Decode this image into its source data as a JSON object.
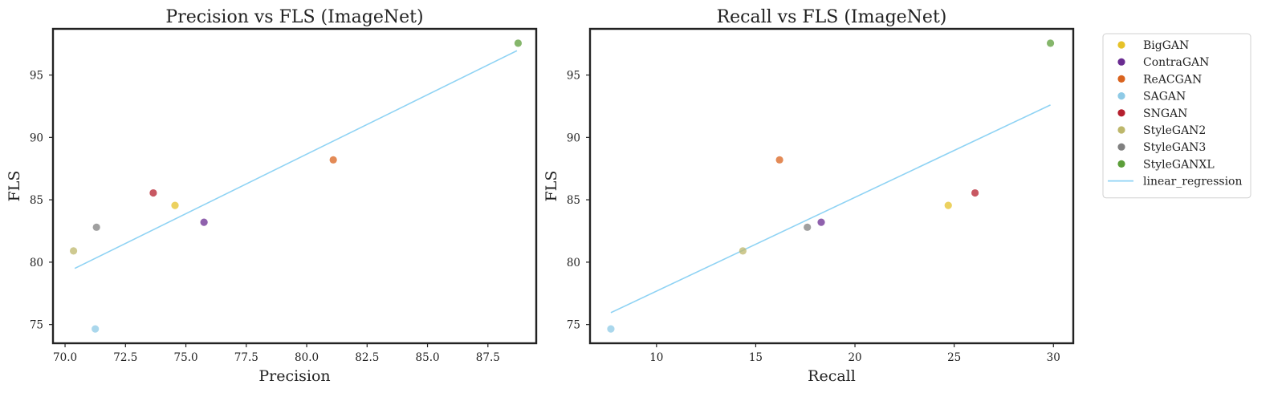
{
  "chart_data": [
    {
      "type": "scatter",
      "title": "Precision vs FLS (ImageNet)",
      "xlabel": "Precision",
      "ylabel": "FLS",
      "xlim": [
        69.5,
        89.5
      ],
      "ylim": [
        73.5,
        98.7
      ],
      "xticks": [
        70.0,
        72.5,
        75.0,
        77.5,
        80.0,
        82.5,
        85.0,
        87.5
      ],
      "xtick_labels": [
        "70.0",
        "72.5",
        "75.0",
        "77.5",
        "80.0",
        "82.5",
        "85.0",
        "87.5"
      ],
      "yticks": [
        75,
        80,
        85,
        90,
        95
      ],
      "ytick_labels": [
        "75",
        "80",
        "85",
        "90",
        "95"
      ],
      "series": [
        {
          "name": "BigGAN",
          "x": [
            74.55
          ],
          "y": [
            84.55
          ]
        },
        {
          "name": "ContraGAN",
          "x": [
            75.75
          ],
          "y": [
            83.2
          ]
        },
        {
          "name": "ReACGAN",
          "x": [
            81.1
          ],
          "y": [
            88.2
          ]
        },
        {
          "name": "SAGAN",
          "x": [
            71.25
          ],
          "y": [
            74.65
          ]
        },
        {
          "name": "SNGAN",
          "x": [
            73.65
          ],
          "y": [
            85.55
          ]
        },
        {
          "name": "StyleGAN2",
          "x": [
            70.35
          ],
          "y": [
            80.9
          ]
        },
        {
          "name": "StyleGAN3",
          "x": [
            71.3
          ],
          "y": [
            82.8
          ]
        },
        {
          "name": "StyleGANXL",
          "x": [
            88.75
          ],
          "y": [
            97.55
          ]
        }
      ],
      "regression": {
        "name": "linear_regression",
        "x": [
          70.4,
          88.7
        ],
        "y": [
          79.5,
          96.95
        ]
      }
    },
    {
      "type": "scatter",
      "title": "Recall vs FLS (ImageNet)",
      "xlabel": "Recall",
      "ylabel": "FLS",
      "xlim": [
        6.65,
        31.0
      ],
      "ylim": [
        73.5,
        98.7
      ],
      "xticks": [
        10,
        15,
        20,
        25,
        30
      ],
      "xtick_labels": [
        "10",
        "15",
        "20",
        "25",
        "30"
      ],
      "yticks": [
        75,
        80,
        85,
        90,
        95
      ],
      "ytick_labels": [
        "75",
        "80",
        "85",
        "90",
        "95"
      ],
      "series": [
        {
          "name": "BigGAN",
          "x": [
            24.7
          ],
          "y": [
            84.55
          ]
        },
        {
          "name": "ContraGAN",
          "x": [
            18.3
          ],
          "y": [
            83.2
          ]
        },
        {
          "name": "ReACGAN",
          "x": [
            16.2
          ],
          "y": [
            88.2
          ]
        },
        {
          "name": "SAGAN",
          "x": [
            7.7
          ],
          "y": [
            74.65
          ]
        },
        {
          "name": "SNGAN",
          "x": [
            26.05
          ],
          "y": [
            85.55
          ]
        },
        {
          "name": "StyleGAN2",
          "x": [
            14.35
          ],
          "y": [
            80.9
          ]
        },
        {
          "name": "StyleGAN3",
          "x": [
            17.6
          ],
          "y": [
            82.8
          ]
        },
        {
          "name": "StyleGANXL",
          "x": [
            29.85
          ],
          "y": [
            97.55
          ]
        }
      ],
      "regression": {
        "name": "linear_regression",
        "x": [
          7.7,
          29.85
        ],
        "y": [
          75.95,
          92.6
        ]
      }
    }
  ],
  "legend": {
    "placement": "outside right of second plot",
    "entries": [
      {
        "label": "BigGAN",
        "marker": "dot",
        "color": "#e6c229"
      },
      {
        "label": "ContraGAN",
        "marker": "dot",
        "color": "#6a2c91"
      },
      {
        "label": "ReACGAN",
        "marker": "dot",
        "color": "#d9631e"
      },
      {
        "label": "SAGAN",
        "marker": "dot",
        "color": "#8ecae6"
      },
      {
        "label": "SNGAN",
        "marker": "dot",
        "color": "#b5202e"
      },
      {
        "label": "StyleGAN2",
        "marker": "dot",
        "color": "#bdb76b"
      },
      {
        "label": "StyleGAN3",
        "marker": "dot",
        "color": "#808080"
      },
      {
        "label": "StyleGANXL",
        "marker": "dot",
        "color": "#5c9e3a"
      },
      {
        "label": "linear_regression",
        "marker": "line",
        "color": "#8fd3f4"
      }
    ]
  },
  "colors": {
    "BigGAN": "#e6c229",
    "ContraGAN": "#6a2c91",
    "ReACGAN": "#d9631e",
    "SAGAN": "#8ecae6",
    "SNGAN": "#b5202e",
    "StyleGAN2": "#bdb76b",
    "StyleGAN3": "#808080",
    "StyleGANXL": "#5c9e3a",
    "linear_regression": "#8fd3f4",
    "axes": "#222222"
  },
  "point_alpha": 0.75
}
